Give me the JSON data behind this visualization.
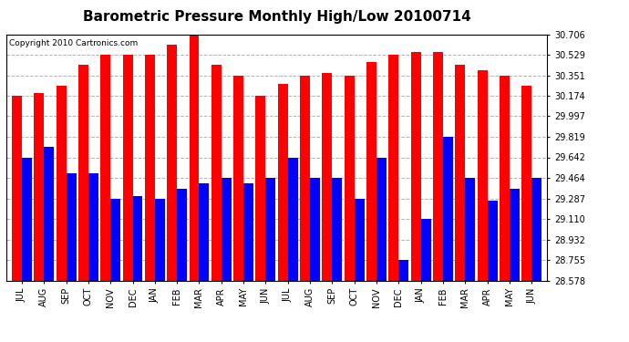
{
  "title": "Barometric Pressure Monthly High/Low 20100714",
  "copyright": "Copyright 2010 Cartronics.com",
  "categories": [
    "JUL",
    "AUG",
    "SEP",
    "OCT",
    "NOV",
    "DEC",
    "JAN",
    "FEB",
    "MAR",
    "APR",
    "MAY",
    "JUN",
    "JUL",
    "AUG",
    "SEP",
    "OCT",
    "NOV",
    "DEC",
    "JAN",
    "FEB",
    "MAR",
    "APR",
    "MAY",
    "JUN"
  ],
  "highs": [
    30.174,
    30.196,
    30.262,
    30.44,
    30.529,
    30.529,
    30.529,
    30.617,
    30.706,
    30.44,
    30.351,
    30.174,
    30.28,
    30.351,
    30.37,
    30.351,
    30.462,
    30.529,
    30.551,
    30.551,
    30.44,
    30.396,
    30.351,
    30.263
  ],
  "lows": [
    29.642,
    29.73,
    29.508,
    29.508,
    29.287,
    29.308,
    29.287,
    29.374,
    29.42,
    29.464,
    29.418,
    29.464,
    29.642,
    29.464,
    29.464,
    29.287,
    29.642,
    28.755,
    29.11,
    29.819,
    29.464,
    29.264,
    29.374,
    29.464
  ],
  "high_color": "#FF0000",
  "low_color": "#0000FF",
  "background_color": "#FFFFFF",
  "plot_bg_color": "#FFFFFF",
  "grid_color": "#AAAAAA",
  "ymin": 28.578,
  "ymax": 30.706,
  "yticks": [
    28.578,
    28.755,
    28.932,
    29.11,
    29.287,
    29.464,
    29.642,
    29.819,
    29.997,
    30.174,
    30.351,
    30.529,
    30.706
  ],
  "title_fontsize": 11,
  "copyright_fontsize": 6.5,
  "tick_fontsize": 7,
  "xlabel_fontsize": 7
}
